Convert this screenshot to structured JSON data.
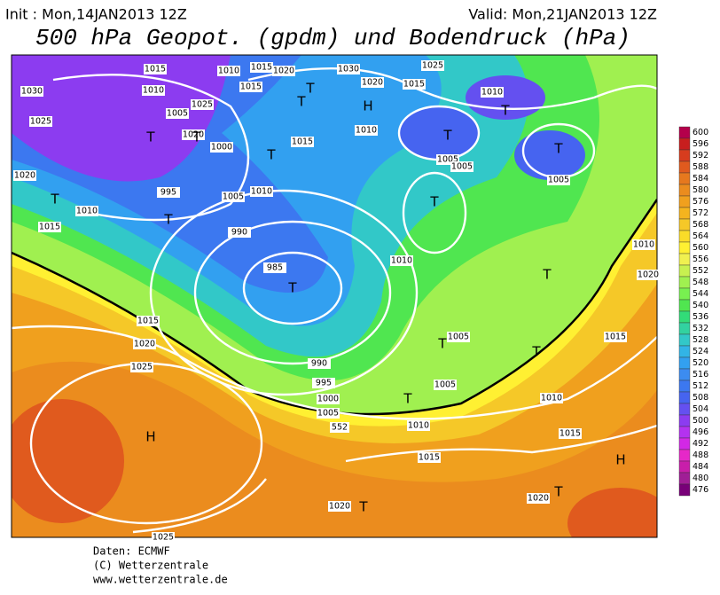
{
  "header": {
    "init": "Init : Mon,14JAN2013 12Z",
    "valid": "Valid: Mon,21JAN2013 12Z",
    "title": "500 hPa Geopot. (gpdm) und Bodendruck (hPa)"
  },
  "colorbar": {
    "levels": [
      600,
      596,
      592,
      588,
      584,
      580,
      576,
      572,
      568,
      564,
      560,
      556,
      552,
      548,
      544,
      540,
      536,
      532,
      528,
      524,
      520,
      516,
      512,
      508,
      504,
      500,
      496,
      492,
      488,
      484,
      480,
      476
    ],
    "colors": [
      "#b4004b",
      "#c81e1e",
      "#d73c1e",
      "#e05a1e",
      "#e6781e",
      "#eb8c1e",
      "#f0a01e",
      "#f5b41e",
      "#f5c828",
      "#fadc28",
      "#fff032",
      "#f0f050",
      "#c8f050",
      "#a0f050",
      "#78f050",
      "#50e650",
      "#32dc78",
      "#32d2a0",
      "#32c8c8",
      "#32b4e6",
      "#32a0f0",
      "#3c8cf0",
      "#3c78f0",
      "#4664f0",
      "#6450f0",
      "#8c3cf0",
      "#b432f0",
      "#d228e6",
      "#e628c8",
      "#c81eaa",
      "#a01e96",
      "#780078"
    ]
  },
  "map": {
    "isobar_labels": [
      1015,
      1010,
      1015,
      1020,
      1030,
      1025,
      1030,
      1010,
      1015,
      1020,
      1015,
      1010,
      1025,
      1005,
      1025,
      1020,
      1010,
      1000,
      1015,
      1005,
      1005,
      1005,
      1020,
      995,
      1005,
      1010,
      1010,
      1015,
      990,
      985,
      1010,
      1015,
      990,
      995,
      1000,
      1005,
      1005,
      1005,
      1020,
      1025,
      1010,
      1010,
      1015,
      1015,
      1020,
      1020,
      1025,
      1015,
      1020,
      1010
    ],
    "contour_label": 552,
    "pressure_centers": [
      "H",
      "T",
      "T",
      "T",
      "T",
      "T",
      "T",
      "T",
      "T",
      "H",
      "T",
      "T",
      "T",
      "T",
      "T",
      "T",
      "T",
      "T",
      "T",
      "T",
      "H"
    ]
  },
  "footer": {
    "source": "Daten: ECMWF",
    "copyright": "(C) Wetterzentrale",
    "url": "www.wetterzentrale.de"
  }
}
